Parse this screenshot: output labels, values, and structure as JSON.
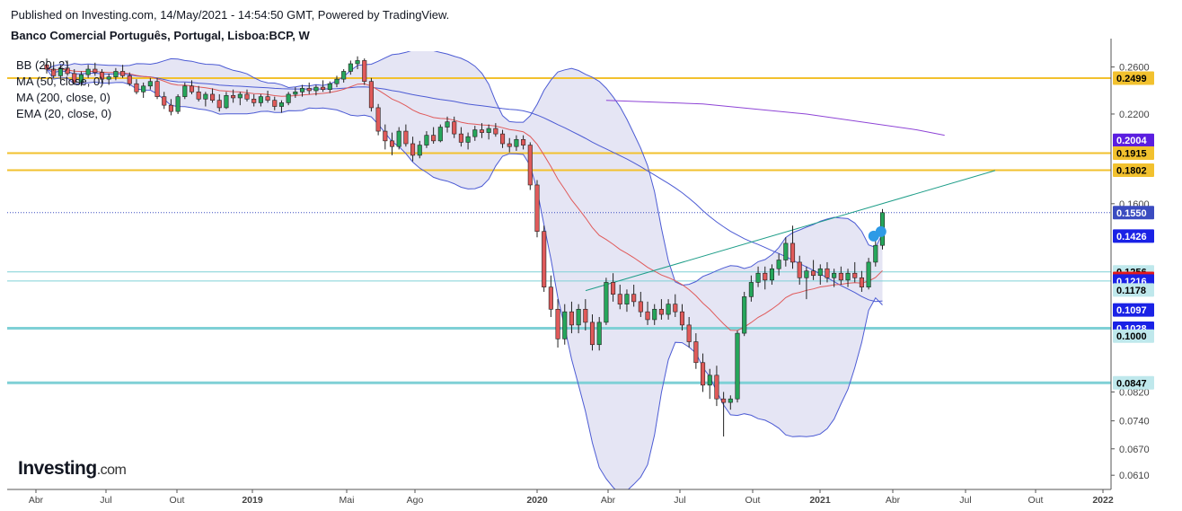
{
  "header": {
    "published": "Published on Investing.com, 14/May/2021 - 14:54:50 GMT, Powered by TradingView.",
    "title": "Banco Comercial Português, Portugal, Lisboa:BCP, W"
  },
  "legend": [
    "BB (20, 2)",
    "MA (50, close, 0)",
    "MA (200, close, 0)",
    "EMA (20, close, 0)"
  ],
  "logo": {
    "main": "Investing",
    "suffix": ".com"
  },
  "colors": {
    "up": "#26a65b",
    "down": "#e05a5a",
    "bb": "#4c5bd4",
    "bb_fill": "#dcdcf0",
    "ma200": "#8e44d6",
    "ema": "#e05a5a",
    "orange": "#f2c12e",
    "cyan": "#7fd0d6",
    "trend": "#1f9e89",
    "price_line": "#3b4cc0"
  },
  "chart_data": {
    "type": "candlestick",
    "symbol": "BCP",
    "interval": "W",
    "x_ticks": [
      "Abr",
      "Jul",
      "Out",
      "2019",
      "Mai",
      "Ago",
      "2020",
      "Abr",
      "Jul",
      "Out",
      "2021",
      "Abr",
      "Jul",
      "Out",
      "2022"
    ],
    "y_ticks": [
      "0.2600",
      "0.2200",
      "0.1600",
      "0.0820",
      "0.0740",
      "0.0670",
      "0.0610"
    ],
    "y_axis": "log",
    "ylim": [
      0.058,
      0.275
    ],
    "horizontal_levels": [
      {
        "value": 0.2499,
        "color": "orange"
      },
      {
        "value": 0.1915,
        "color": "orange"
      },
      {
        "value": 0.1802,
        "color": "orange"
      },
      {
        "value": 0.1256,
        "color": "cyan_thin"
      },
      {
        "value": 0.1216,
        "color": "cyan_thin"
      },
      {
        "value": 0.1028,
        "color": "cyan_thick"
      },
      {
        "value": 0.0847,
        "color": "cyan_thick"
      }
    ],
    "price_labels": [
      {
        "text": "0.2499",
        "value": 0.2499,
        "bg": "#f2c12e",
        "fg": "#000000"
      },
      {
        "text": "0.2004",
        "value": 0.2004,
        "bg": "#5b1ee0",
        "fg": "#ffffff"
      },
      {
        "text": "0.1915",
        "value": 0.1915,
        "bg": "#f2c12e",
        "fg": "#000000"
      },
      {
        "text": "0.1802",
        "value": 0.1802,
        "bg": "#f2c12e",
        "fg": "#000000"
      },
      {
        "text": "0.1550",
        "value": 0.155,
        "bg": "#3b4cc0",
        "fg": "#ffffff"
      },
      {
        "text": "0.1426",
        "value": 0.1426,
        "bg": "#1a22e6",
        "fg": "#ffffff"
      },
      {
        "text": "0.1256",
        "value": 0.1256,
        "bg": "#bfe8ec",
        "fg": "#000000"
      },
      {
        "text": "0.1227",
        "value": 0.1227,
        "bg": "#e61a1a",
        "fg": "#ffffff"
      },
      {
        "text": "0.1216",
        "value": 0.1216,
        "bg": "#1a22e6",
        "fg": "#ffffff"
      },
      {
        "text": "0.1178",
        "value": 0.1178,
        "bg": "#bfe8ec",
        "fg": "#000000"
      },
      {
        "text": "0.1097",
        "value": 0.1097,
        "bg": "#1a22e6",
        "fg": "#ffffff"
      },
      {
        "text": "0.1028",
        "value": 0.1028,
        "bg": "#1a22e6",
        "fg": "#ffffff"
      },
      {
        "text": "0.1000",
        "value": 0.1,
        "bg": "#bfe8ec",
        "fg": "#000000"
      },
      {
        "text": "0.0847",
        "value": 0.0847,
        "bg": "#bfe8ec",
        "fg": "#000000"
      }
    ],
    "last_price": 0.155,
    "trendline": {
      "from": [
        "2020-03",
        0.1175
      ],
      "to": [
        "2021-08",
        0.18
      ]
    },
    "series": [
      {
        "name": "BB (20, 2)",
        "type": "band"
      },
      {
        "name": "MA (50, close, 0)",
        "type": "line"
      },
      {
        "name": "MA (200, close, 0)",
        "type": "line"
      },
      {
        "name": "EMA (20, close, 0)",
        "type": "line"
      }
    ],
    "candles": [
      [
        0.262,
        0.268,
        0.254,
        0.258
      ],
      [
        0.258,
        0.265,
        0.25,
        0.252
      ],
      [
        0.252,
        0.262,
        0.248,
        0.259
      ],
      [
        0.259,
        0.266,
        0.252,
        0.254
      ],
      [
        0.254,
        0.258,
        0.244,
        0.246
      ],
      [
        0.246,
        0.256,
        0.243,
        0.253
      ],
      [
        0.253,
        0.262,
        0.25,
        0.258
      ],
      [
        0.258,
        0.264,
        0.252,
        0.255
      ],
      [
        0.255,
        0.258,
        0.246,
        0.249
      ],
      [
        0.249,
        0.254,
        0.244,
        0.251
      ],
      [
        0.251,
        0.259,
        0.248,
        0.256
      ],
      [
        0.256,
        0.262,
        0.25,
        0.252
      ],
      [
        0.252,
        0.255,
        0.243,
        0.245
      ],
      [
        0.245,
        0.249,
        0.236,
        0.238
      ],
      [
        0.238,
        0.246,
        0.233,
        0.243
      ],
      [
        0.243,
        0.25,
        0.24,
        0.247
      ],
      [
        0.247,
        0.25,
        0.232,
        0.234
      ],
      [
        0.234,
        0.238,
        0.224,
        0.227
      ],
      [
        0.227,
        0.232,
        0.219,
        0.222
      ],
      [
        0.222,
        0.236,
        0.22,
        0.234
      ],
      [
        0.234,
        0.246,
        0.232,
        0.243
      ],
      [
        0.243,
        0.248,
        0.236,
        0.238
      ],
      [
        0.238,
        0.243,
        0.23,
        0.232
      ],
      [
        0.232,
        0.238,
        0.226,
        0.236
      ],
      [
        0.236,
        0.241,
        0.229,
        0.231
      ],
      [
        0.231,
        0.236,
        0.222,
        0.225
      ],
      [
        0.225,
        0.238,
        0.224,
        0.235
      ],
      [
        0.235,
        0.24,
        0.229,
        0.233
      ],
      [
        0.233,
        0.238,
        0.227,
        0.236
      ],
      [
        0.236,
        0.24,
        0.23,
        0.232
      ],
      [
        0.232,
        0.236,
        0.226,
        0.229
      ],
      [
        0.229,
        0.236,
        0.226,
        0.234
      ],
      [
        0.234,
        0.239,
        0.229,
        0.231
      ],
      [
        0.231,
        0.234,
        0.223,
        0.226
      ],
      [
        0.226,
        0.231,
        0.221,
        0.229
      ],
      [
        0.229,
        0.238,
        0.227,
        0.236
      ],
      [
        0.236,
        0.242,
        0.233,
        0.238
      ],
      [
        0.238,
        0.244,
        0.234,
        0.241
      ],
      [
        0.241,
        0.246,
        0.236,
        0.239
      ],
      [
        0.239,
        0.244,
        0.235,
        0.242
      ],
      [
        0.242,
        0.248,
        0.238,
        0.24
      ],
      [
        0.24,
        0.247,
        0.237,
        0.245
      ],
      [
        0.245,
        0.252,
        0.242,
        0.249
      ],
      [
        0.249,
        0.258,
        0.246,
        0.256
      ],
      [
        0.256,
        0.266,
        0.253,
        0.263
      ],
      [
        0.263,
        0.27,
        0.258,
        0.266
      ],
      [
        0.266,
        0.268,
        0.244,
        0.247
      ],
      [
        0.247,
        0.25,
        0.222,
        0.225
      ],
      [
        0.225,
        0.228,
        0.204,
        0.207
      ],
      [
        0.207,
        0.212,
        0.194,
        0.2
      ],
      [
        0.2,
        0.206,
        0.19,
        0.196
      ],
      [
        0.196,
        0.21,
        0.194,
        0.207
      ],
      [
        0.207,
        0.212,
        0.196,
        0.198
      ],
      [
        0.198,
        0.203,
        0.186,
        0.19
      ],
      [
        0.19,
        0.2,
        0.188,
        0.197
      ],
      [
        0.197,
        0.207,
        0.195,
        0.204
      ],
      [
        0.204,
        0.21,
        0.198,
        0.2
      ],
      [
        0.2,
        0.212,
        0.199,
        0.21
      ],
      [
        0.21,
        0.218,
        0.206,
        0.214
      ],
      [
        0.214,
        0.218,
        0.202,
        0.205
      ],
      [
        0.205,
        0.21,
        0.196,
        0.199
      ],
      [
        0.199,
        0.206,
        0.194,
        0.203
      ],
      [
        0.203,
        0.211,
        0.2,
        0.208
      ],
      [
        0.208,
        0.213,
        0.202,
        0.206
      ],
      [
        0.206,
        0.212,
        0.201,
        0.209
      ],
      [
        0.209,
        0.213,
        0.203,
        0.205
      ],
      [
        0.205,
        0.208,
        0.195,
        0.198
      ],
      [
        0.198,
        0.202,
        0.192,
        0.196
      ],
      [
        0.196,
        0.204,
        0.193,
        0.201
      ],
      [
        0.201,
        0.204,
        0.194,
        0.197
      ],
      [
        0.197,
        0.199,
        0.168,
        0.171
      ],
      [
        0.171,
        0.174,
        0.142,
        0.145
      ],
      [
        0.145,
        0.148,
        0.117,
        0.119
      ],
      [
        0.119,
        0.124,
        0.107,
        0.11
      ],
      [
        0.11,
        0.114,
        0.096,
        0.099
      ],
      [
        0.099,
        0.112,
        0.097,
        0.109
      ],
      [
        0.109,
        0.113,
        0.101,
        0.104
      ],
      [
        0.104,
        0.112,
        0.101,
        0.11
      ],
      [
        0.11,
        0.114,
        0.102,
        0.105
      ],
      [
        0.105,
        0.108,
        0.095,
        0.097
      ],
      [
        0.097,
        0.107,
        0.095,
        0.105
      ],
      [
        0.105,
        0.123,
        0.104,
        0.121
      ],
      [
        0.121,
        0.125,
        0.113,
        0.116
      ],
      [
        0.116,
        0.12,
        0.11,
        0.112
      ],
      [
        0.112,
        0.118,
        0.109,
        0.116
      ],
      [
        0.116,
        0.12,
        0.111,
        0.113
      ],
      [
        0.113,
        0.117,
        0.107,
        0.109
      ],
      [
        0.109,
        0.113,
        0.104,
        0.106
      ],
      [
        0.106,
        0.112,
        0.104,
        0.11
      ],
      [
        0.11,
        0.114,
        0.106,
        0.108
      ],
      [
        0.108,
        0.114,
        0.106,
        0.112
      ],
      [
        0.112,
        0.116,
        0.107,
        0.109
      ],
      [
        0.109,
        0.112,
        0.102,
        0.104
      ],
      [
        0.104,
        0.107,
        0.096,
        0.098
      ],
      [
        0.098,
        0.101,
        0.089,
        0.091
      ],
      [
        0.091,
        0.094,
        0.082,
        0.084
      ],
      [
        0.084,
        0.089,
        0.08,
        0.087
      ],
      [
        0.087,
        0.09,
        0.078,
        0.08
      ],
      [
        0.08,
        0.082,
        0.07,
        0.079
      ],
      [
        0.079,
        0.081,
        0.077,
        0.08
      ],
      [
        0.08,
        0.102,
        0.079,
        0.101
      ],
      [
        0.101,
        0.117,
        0.1,
        0.115
      ],
      [
        0.115,
        0.124,
        0.113,
        0.121
      ],
      [
        0.121,
        0.128,
        0.119,
        0.125
      ],
      [
        0.125,
        0.128,
        0.118,
        0.122
      ],
      [
        0.122,
        0.129,
        0.12,
        0.127
      ],
      [
        0.127,
        0.134,
        0.124,
        0.131
      ],
      [
        0.131,
        0.142,
        0.128,
        0.139
      ],
      [
        0.139,
        0.148,
        0.127,
        0.13
      ],
      [
        0.13,
        0.133,
        0.12,
        0.123
      ],
      [
        0.123,
        0.128,
        0.114,
        0.126
      ],
      [
        0.126,
        0.131,
        0.122,
        0.124
      ],
      [
        0.124,
        0.129,
        0.12,
        0.127
      ],
      [
        0.127,
        0.13,
        0.121,
        0.123
      ],
      [
        0.123,
        0.127,
        0.119,
        0.125
      ],
      [
        0.125,
        0.128,
        0.12,
        0.122
      ],
      [
        0.122,
        0.127,
        0.119,
        0.125
      ],
      [
        0.125,
        0.13,
        0.121,
        0.123
      ],
      [
        0.123,
        0.126,
        0.117,
        0.119
      ],
      [
        0.119,
        0.132,
        0.118,
        0.13
      ],
      [
        0.13,
        0.141,
        0.128,
        0.138
      ],
      [
        0.138,
        0.157,
        0.136,
        0.155
      ]
    ]
  }
}
